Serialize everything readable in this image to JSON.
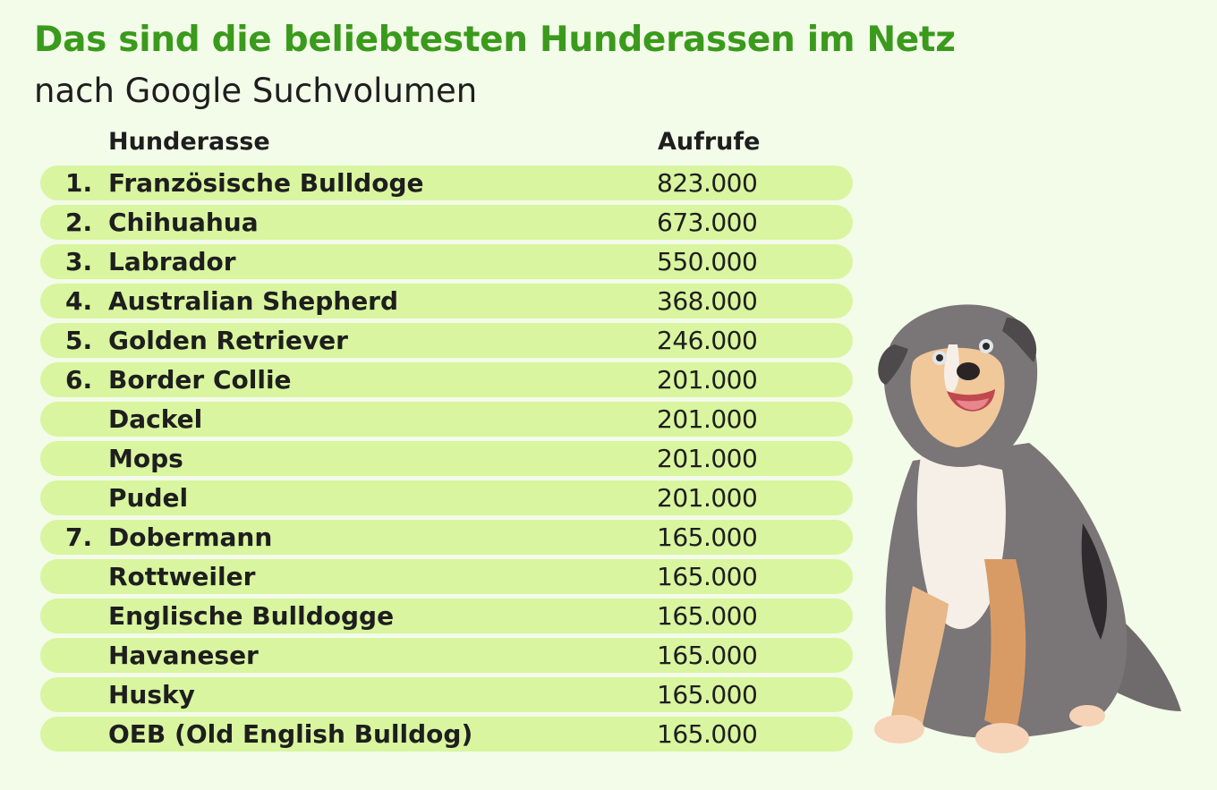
{
  "title": "Das sind die beliebtesten Hunderassen im Netz",
  "subtitle": "nach Google Suchvolumen",
  "colors": {
    "accent": "#3a9a1c",
    "row_bg": "#d9f59f",
    "page_bg": "#f3fbe9"
  },
  "chart_data": {
    "type": "table",
    "columns": [
      "",
      "Hunderasse",
      "Aufrufe"
    ],
    "rows": [
      {
        "rank": "1.",
        "breed": "Französische Bulldoge",
        "views": "823.000",
        "value": 823000
      },
      {
        "rank": "2.",
        "breed": "Chihuahua",
        "views": "673.000",
        "value": 673000
      },
      {
        "rank": "3.",
        "breed": "Labrador",
        "views": "550.000",
        "value": 550000
      },
      {
        "rank": "4.",
        "breed": "Australian Shepherd",
        "views": "368.000",
        "value": 368000
      },
      {
        "rank": "5.",
        "breed": "Golden Retriever",
        "views": "246.000",
        "value": 246000
      },
      {
        "rank": "6.",
        "breed": "Border Collie",
        "views": "201.000",
        "value": 201000
      },
      {
        "rank": "",
        "breed": "Dackel",
        "views": "201.000",
        "value": 201000
      },
      {
        "rank": "",
        "breed": "Mops",
        "views": "201.000",
        "value": 201000
      },
      {
        "rank": "",
        "breed": "Pudel",
        "views": "201.000",
        "value": 201000
      },
      {
        "rank": "7.",
        "breed": "Dobermann",
        "views": "165.000",
        "value": 165000
      },
      {
        "rank": "",
        "breed": "Rottweiler",
        "views": "165.000",
        "value": 165000
      },
      {
        "rank": "",
        "breed": "Englische Bulldogge",
        "views": "165.000",
        "value": 165000
      },
      {
        "rank": "",
        "breed": "Havaneser",
        "views": "165.000",
        "value": 165000
      },
      {
        "rank": "",
        "breed": "Husky",
        "views": "165.000",
        "value": 165000
      },
      {
        "rank": "",
        "breed": "OEB (Old English  Bulldog)",
        "views": "165.000",
        "value": 165000
      }
    ]
  },
  "illustration": {
    "icon": "australian-shepherd-dog-icon"
  }
}
